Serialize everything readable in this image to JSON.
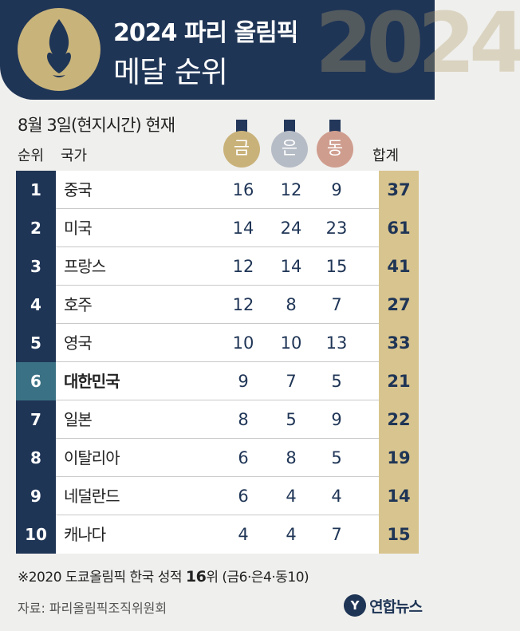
{
  "header": {
    "title_line1": "2024 파리 올림픽",
    "title_line2": "메달 순위",
    "deco_text": "2024"
  },
  "as_of": "8월 3일(현지시간) 현재",
  "columns": {
    "rank": "순위",
    "country": "국가",
    "gold": "금",
    "silver": "은",
    "bronze": "동",
    "total": "합계"
  },
  "colors": {
    "navy": "#1f3556",
    "gold": "#c9b27a",
    "silver": "#b6bcc6",
    "bronze": "#cf9d8e",
    "total_bg": "#d8c48e",
    "highlight_rank": "#3b7184"
  },
  "rows": [
    {
      "rank": "1",
      "country": "중국",
      "gold": "16",
      "silver": "12",
      "bronze": "9",
      "total": "37"
    },
    {
      "rank": "2",
      "country": "미국",
      "gold": "14",
      "silver": "24",
      "bronze": "23",
      "total": "61"
    },
    {
      "rank": "3",
      "country": "프랑스",
      "gold": "12",
      "silver": "14",
      "bronze": "15",
      "total": "41"
    },
    {
      "rank": "4",
      "country": "호주",
      "gold": "12",
      "silver": "8",
      "bronze": "7",
      "total": "27"
    },
    {
      "rank": "5",
      "country": "영국",
      "gold": "10",
      "silver": "10",
      "bronze": "13",
      "total": "33"
    },
    {
      "rank": "6",
      "country": "대한민국",
      "gold": "9",
      "silver": "7",
      "bronze": "5",
      "total": "21"
    },
    {
      "rank": "7",
      "country": "일본",
      "gold": "8",
      "silver": "5",
      "bronze": "9",
      "total": "22"
    },
    {
      "rank": "8",
      "country": "이탈리아",
      "gold": "6",
      "silver": "8",
      "bronze": "5",
      "total": "19"
    },
    {
      "rank": "9",
      "country": "네덜란드",
      "gold": "6",
      "silver": "4",
      "bronze": "4",
      "total": "14"
    },
    {
      "rank": "10",
      "country": "캐나다",
      "gold": "4",
      "silver": "4",
      "bronze": "7",
      "total": "15"
    }
  ],
  "note": {
    "prefix": "※2020 도쿄올림픽 한국 성적 ",
    "rank": "16",
    "suffix": "위 (금6·은4·동10)"
  },
  "source": "자료: 파리올림픽조직위원회",
  "brand": {
    "mark": "Y",
    "name": "연합뉴스"
  }
}
